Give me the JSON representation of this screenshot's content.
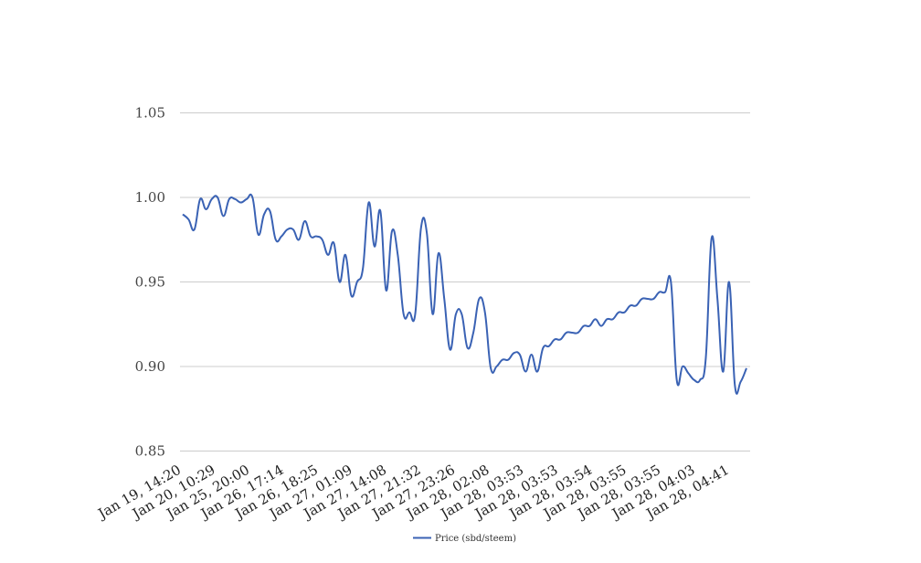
{
  "chart_data": {
    "type": "line",
    "title": "",
    "xlabel": "",
    "ylabel": "",
    "ylim": [
      0.85,
      1.05
    ],
    "yticks": [
      0.85,
      0.9,
      0.95,
      1.0,
      1.05
    ],
    "ytick_labels": [
      "0.85",
      "0.90",
      "0.95",
      "1.00",
      "1.05"
    ],
    "xtick_labels": [
      "Jan 19, 14:20",
      "Jan 20, 10:29",
      "Jan 25, 20:00",
      "Jan 26, 17:14",
      "Jan 26, 18:25",
      "Jan 27, 01:09",
      "Jan 27, 14:08",
      "Jan 27, 21:32",
      "Jan 27, 23:26",
      "Jan 28, 02:08",
      "Jan 28, 03:53",
      "Jan 28, 03:53",
      "Jan 28, 03:54",
      "Jan 28, 03:55",
      "Jan 28, 03:55",
      "Jan 28, 04:03",
      "Jan 28, 04:41"
    ],
    "grid": true,
    "legend_position": "bottom",
    "series": [
      {
        "name": "Price (sbd/steem)",
        "color": "#3a62b4",
        "values": [
          0.99,
          0.987,
          0.981,
          0.999,
          0.993,
          0.999,
          1.0,
          0.989,
          0.999,
          0.999,
          0.997,
          0.999,
          1.0,
          0.978,
          0.99,
          0.992,
          0.975,
          0.977,
          0.981,
          0.981,
          0.975,
          0.986,
          0.977,
          0.977,
          0.975,
          0.966,
          0.973,
          0.95,
          0.966,
          0.942,
          0.95,
          0.958,
          0.997,
          0.971,
          0.992,
          0.945,
          0.98,
          0.966,
          0.931,
          0.932,
          0.931,
          0.982,
          0.979,
          0.931,
          0.967,
          0.94,
          0.91,
          0.931,
          0.931,
          0.911,
          0.92,
          0.94,
          0.932,
          0.899,
          0.9,
          0.904,
          0.904,
          0.908,
          0.907,
          0.897,
          0.907,
          0.897,
          0.911,
          0.912,
          0.916,
          0.916,
          0.92,
          0.92,
          0.92,
          0.924,
          0.924,
          0.928,
          0.924,
          0.928,
          0.928,
          0.932,
          0.932,
          0.936,
          0.936,
          0.94,
          0.94,
          0.94,
          0.944,
          0.944,
          0.95,
          0.892,
          0.9,
          0.896,
          0.892,
          0.892,
          0.905,
          0.976,
          0.94,
          0.897,
          0.95,
          0.889,
          0.891,
          0.899
        ]
      }
    ]
  }
}
